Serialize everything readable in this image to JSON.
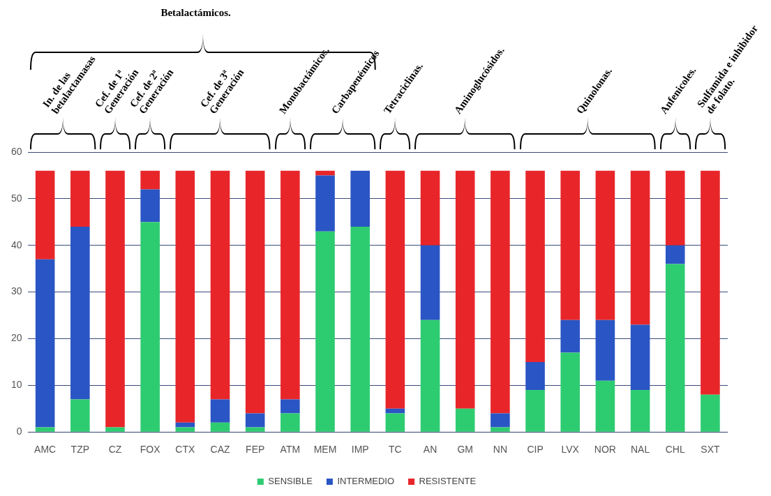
{
  "chart_data": {
    "type": "bar",
    "stacked": true,
    "categories": [
      "AMC",
      "TZP",
      "CZ",
      "FOX",
      "CTX",
      "CAZ",
      "FEP",
      "ATM",
      "MEM",
      "IMP",
      "TC",
      "AN",
      "GM",
      "NN",
      "CIP",
      "LVX",
      "NOR",
      "NAL",
      "CHL",
      "SXT"
    ],
    "series": [
      {
        "name": "SENSIBLE",
        "color": "#2ecc71",
        "values": [
          1,
          7,
          1,
          45,
          1,
          2,
          1,
          4,
          43,
          44,
          4,
          24,
          5,
          1,
          9,
          17,
          11,
          9,
          36,
          8
        ]
      },
      {
        "name": "INTERMEDIO",
        "color": "#2a55c4",
        "values": [
          36,
          37,
          0,
          7,
          1,
          5,
          3,
          3,
          12,
          12,
          1,
          16,
          0,
          3,
          6,
          7,
          13,
          14,
          4,
          0
        ]
      },
      {
        "name": "RESISTENTE",
        "color": "#e8262a",
        "values": [
          19,
          12,
          55,
          4,
          54,
          49,
          52,
          49,
          1,
          0,
          51,
          16,
          51,
          52,
          41,
          32,
          32,
          33,
          16,
          48
        ]
      }
    ],
    "ylim": [
      0,
      60
    ],
    "yticks": [
      0,
      10,
      20,
      30,
      40,
      50,
      60
    ],
    "grid": "y",
    "legend": "bottom",
    "annotations": [
      "Betalactámicos.",
      "In. de las betalactamasas",
      "Cef. de 1ª Generación",
      "Cef. de 2ª Generación",
      "Cef. de 3ª Generación",
      "Monobactámicos.",
      "Carbapenémicos",
      "Tetraciclinas.",
      "Aminoglucósidos.",
      "Quinolonas.",
      "Anfenicoles.",
      "Sulfamida e inhibidor de folato."
    ]
  }
}
